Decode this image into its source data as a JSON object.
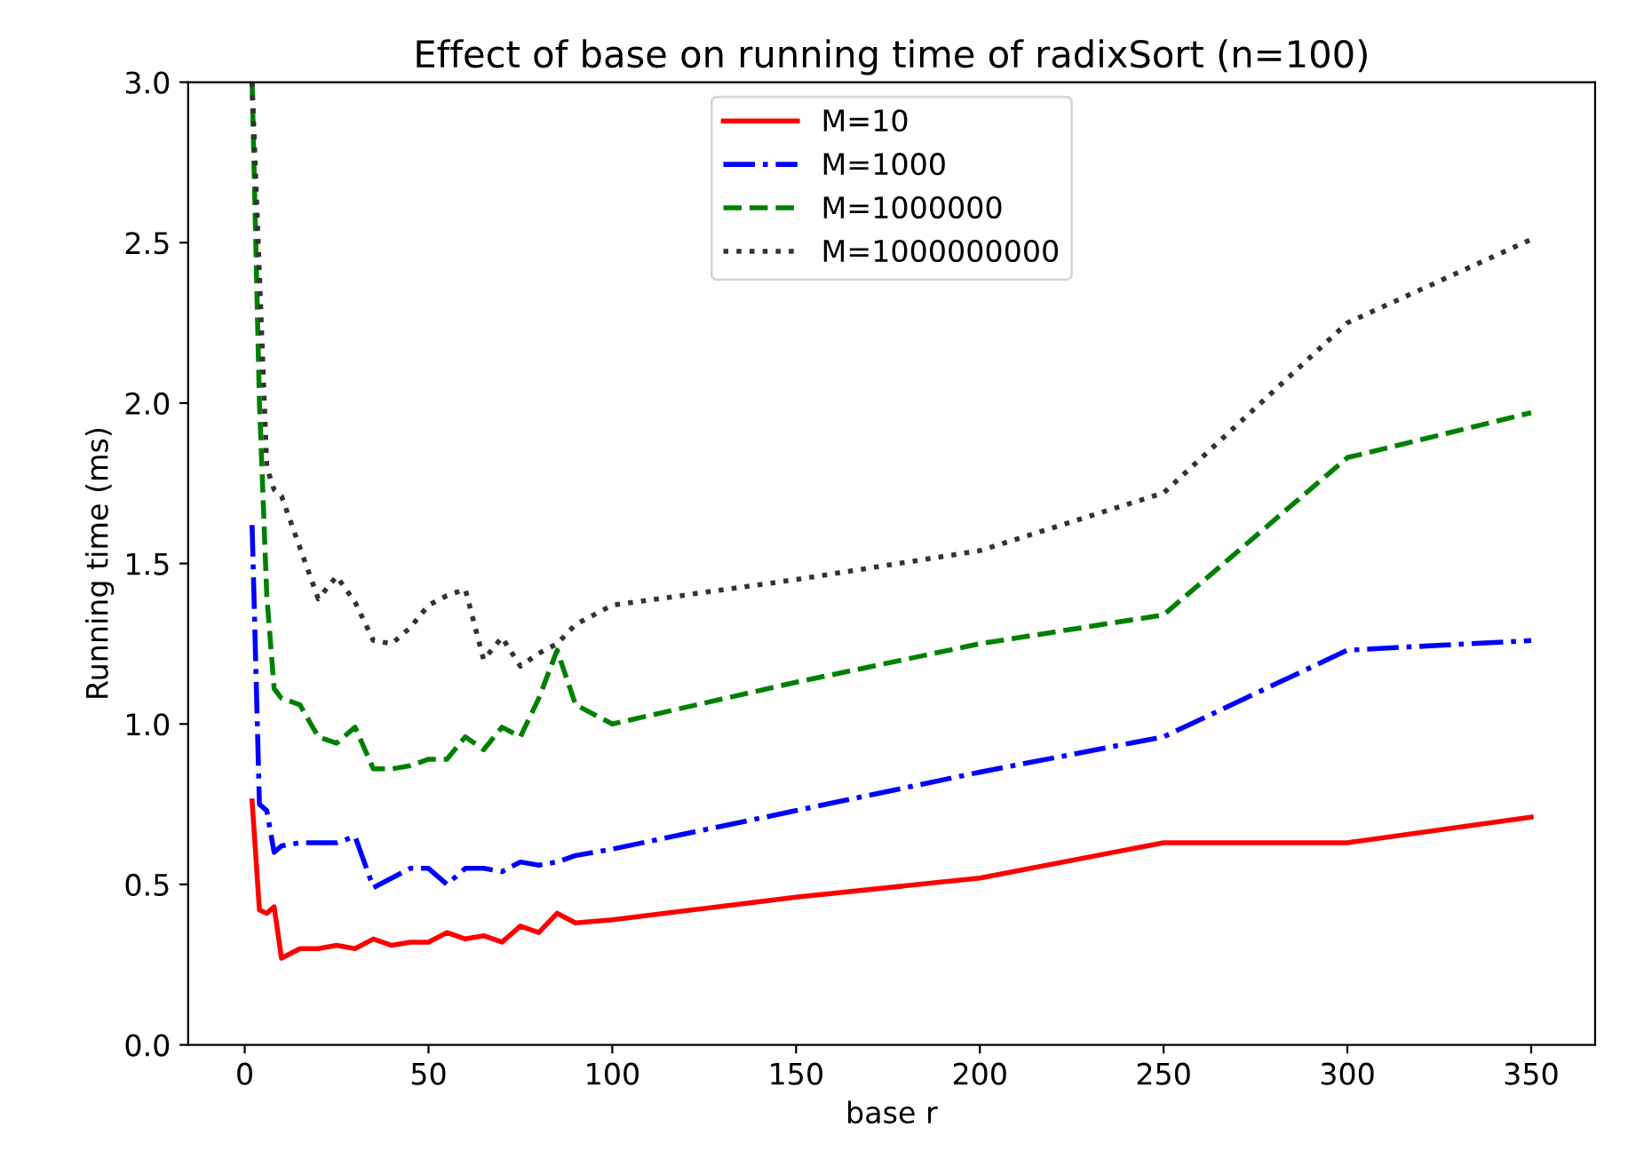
{
  "chart_data": {
    "type": "line",
    "title": "Effect of base on running time of radixSort (n=100)",
    "xlabel": "base r",
    "ylabel": "Running time (ms)",
    "x": [
      2,
      4,
      6,
      8,
      10,
      15,
      20,
      25,
      30,
      35,
      40,
      45,
      50,
      55,
      60,
      65,
      70,
      75,
      80,
      85,
      90,
      100,
      150,
      200,
      250,
      300,
      350
    ],
    "series": [
      {
        "name": "M=10",
        "color": "#ff0000",
        "line_style": "solid",
        "values": [
          0.76,
          0.42,
          0.41,
          0.43,
          0.27,
          0.3,
          0.3,
          0.31,
          0.3,
          0.33,
          0.31,
          0.32,
          0.32,
          0.35,
          0.33,
          0.34,
          0.32,
          0.37,
          0.35,
          0.41,
          0.38,
          0.39,
          0.46,
          0.52,
          0.63,
          0.63,
          0.71
        ]
      },
      {
        "name": "M=1000",
        "color": "#0000ff",
        "line_style": "dashdot",
        "values": [
          1.62,
          0.75,
          0.73,
          0.6,
          0.62,
          0.63,
          0.63,
          0.63,
          0.65,
          0.49,
          0.52,
          0.55,
          0.55,
          0.5,
          0.55,
          0.55,
          0.54,
          0.57,
          0.56,
          0.57,
          0.59,
          0.61,
          0.73,
          0.85,
          0.96,
          1.23,
          1.26
        ]
      },
      {
        "name": "M=1000000",
        "color": "#008000",
        "line_style": "dashed",
        "values": [
          3.0,
          2.0,
          1.4,
          1.11,
          1.08,
          1.06,
          0.96,
          0.94,
          0.99,
          0.86,
          0.86,
          0.87,
          0.89,
          0.89,
          0.96,
          0.92,
          0.99,
          0.96,
          1.08,
          1.23,
          1.06,
          1.0,
          1.13,
          1.25,
          1.34,
          1.83,
          1.97
        ]
      },
      {
        "name": "M=1000000000",
        "color": "#333333",
        "line_style": "dotted",
        "values": [
          3.0,
          2.4,
          1.8,
          1.73,
          1.71,
          1.55,
          1.39,
          1.46,
          1.38,
          1.26,
          1.25,
          1.3,
          1.37,
          1.4,
          1.42,
          1.2,
          1.27,
          1.18,
          1.22,
          1.25,
          1.31,
          1.37,
          1.45,
          1.54,
          1.72,
          2.25,
          2.51
        ]
      }
    ],
    "xlim": [
      -15.4,
      367.4
    ],
    "xticks": [
      0,
      50,
      100,
      150,
      200,
      250,
      300,
      350
    ],
    "ylim": [
      0,
      3.0
    ],
    "yticks": [
      {
        "value": 0,
        "label": "0.0"
      },
      {
        "value": 0.5,
        "label": "0.5"
      },
      {
        "value": 1.0,
        "label": "1.0"
      },
      {
        "value": 1.5,
        "label": "1.5"
      },
      {
        "value": 2.0,
        "label": "2.0"
      },
      {
        "value": 2.5,
        "label": "2.5"
      },
      {
        "value": 3.0,
        "label": "3.0"
      }
    ],
    "grid": false,
    "legend": "upper center",
    "marker": "none"
  }
}
